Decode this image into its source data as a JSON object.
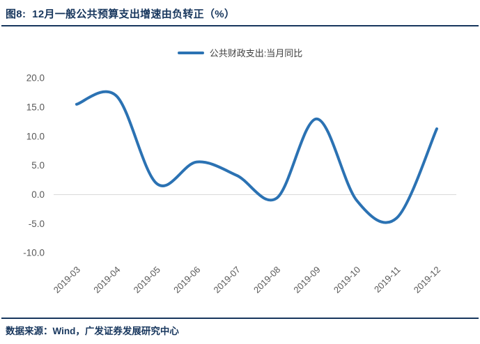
{
  "title": "图8:  12月一般公共预算支出增速由负转正（%）",
  "footer": {
    "source_label": "数据来源：Wind，广发证券发展研究中心"
  },
  "colors": {
    "accent_navy": "#17365D",
    "series_blue": "#2B72B3",
    "axis_text_gray": "#595959",
    "gridline_gray": "#D9D9D9",
    "background": "#FFFFFF"
  },
  "chart_data": {
    "type": "line",
    "title": "图8: 12月一般公共预算支出增速由负转正（%）",
    "categories": [
      "2019-03",
      "2019-04",
      "2019-05",
      "2019-06",
      "2019-07",
      "2019-08",
      "2019-09",
      "2019-10",
      "2019-11",
      "2019-12"
    ],
    "series": [
      {
        "name": "公共财政支出:当月同比",
        "color": "#2B72B3",
        "values": [
          15.5,
          16.9,
          1.9,
          5.6,
          3.3,
          -0.6,
          13.0,
          -1.0,
          -4.0,
          11.3
        ]
      }
    ],
    "ytick_labels": [
      "20.0",
      "15.0",
      "10.0",
      "5.0",
      "0.0",
      "-5.0",
      "-10.0"
    ],
    "ylim": [
      -10,
      20
    ],
    "xlabel": "",
    "ylabel": "",
    "grid": "horizontal zero line only",
    "line_style": "smooth spline, no markers",
    "legend_position": "top-center",
    "x_tick_rotation_deg": 45
  }
}
